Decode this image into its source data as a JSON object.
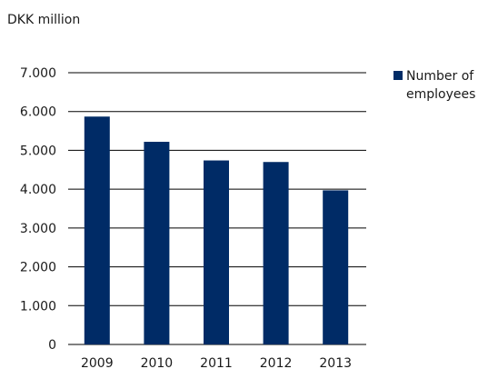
{
  "chart_data": {
    "type": "bar",
    "unit_label": "DKK million",
    "categories": [
      "2009",
      "2010",
      "2011",
      "2012",
      "2013"
    ],
    "series": [
      {
        "name": "Number of employees",
        "values": [
          5870,
          5220,
          4740,
          4700,
          3970
        ]
      }
    ],
    "ylim": [
      0,
      7000
    ],
    "yticks": [
      0,
      1000,
      2000,
      3000,
      4000,
      5000,
      6000,
      7000
    ],
    "ytick_labels": [
      "0",
      "1.000",
      "2.000",
      "3.000",
      "4.000",
      "5.000",
      "6.000",
      "7.000"
    ],
    "grid": true,
    "legend_position": "right",
    "colors": {
      "bar": "#002b66",
      "grid": "#000000"
    }
  }
}
